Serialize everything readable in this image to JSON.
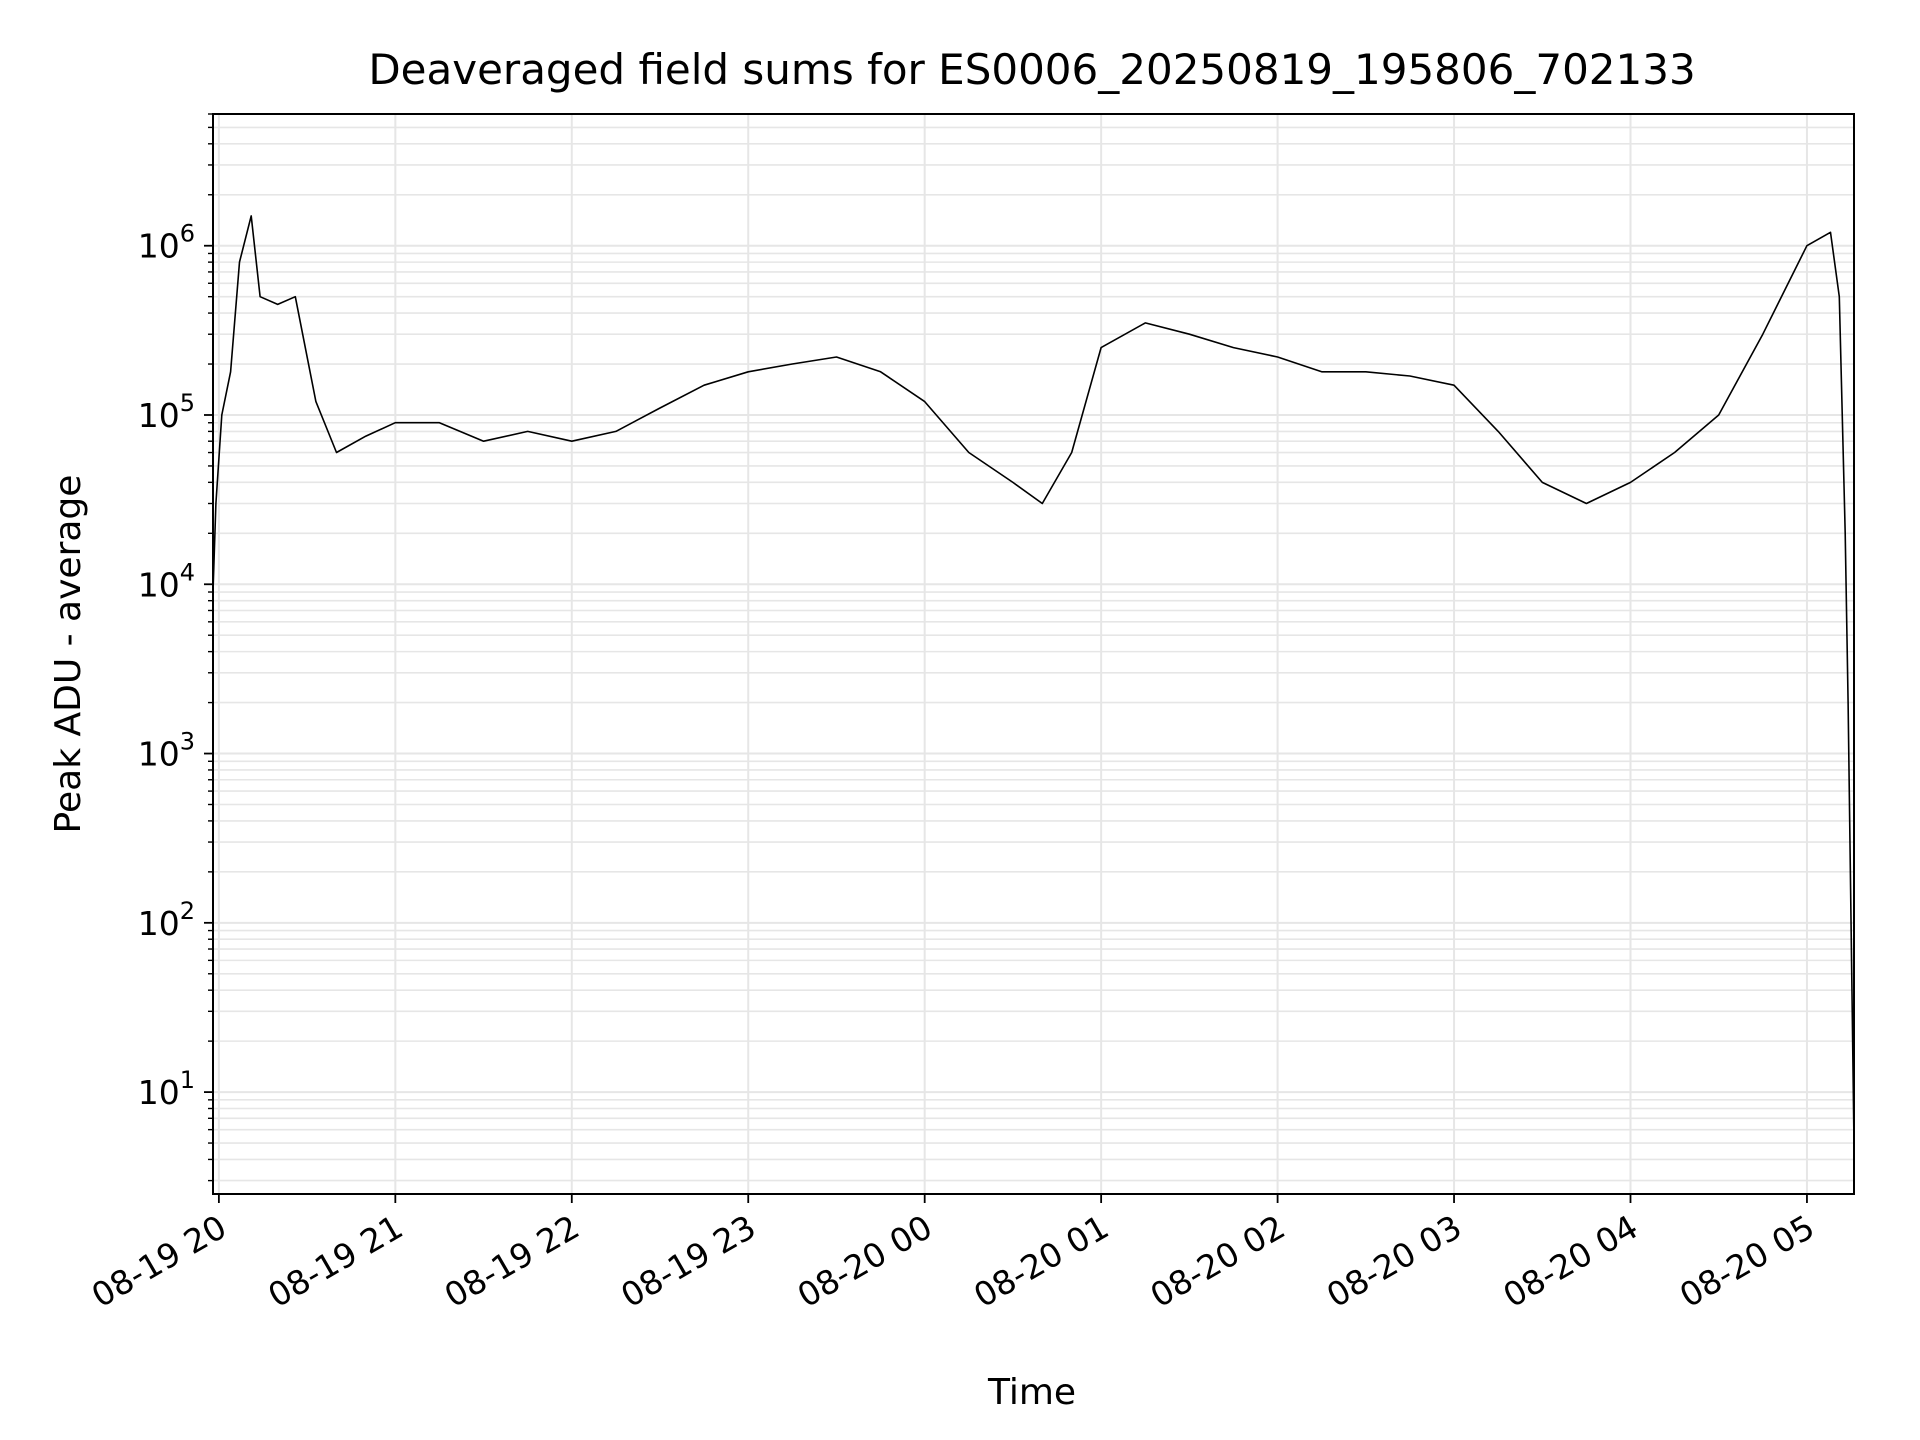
{
  "chart_data": {
    "type": "line",
    "title": "Deaveraged field sums for ES0006_20250819_195806_702133",
    "xlabel": "Time",
    "ylabel": "Peak ADU - average",
    "yscale": "log",
    "ylim": [
      2.5,
      6000000
    ],
    "xlim": [
      "2025-08-19 19:58",
      "2025-08-20 05:16"
    ],
    "grid": true,
    "line_color": "#000000",
    "grid_color": "#e6e6e6",
    "x_ticks": [
      {
        "t": "2025-08-19 20:00",
        "label": "08-19 20"
      },
      {
        "t": "2025-08-19 21:00",
        "label": "08-19 21"
      },
      {
        "t": "2025-08-19 22:00",
        "label": "08-19 22"
      },
      {
        "t": "2025-08-19 23:00",
        "label": "08-19 23"
      },
      {
        "t": "2025-08-20 00:00",
        "label": "08-20 00"
      },
      {
        "t": "2025-08-20 01:00",
        "label": "08-20 01"
      },
      {
        "t": "2025-08-20 02:00",
        "label": "08-20 02"
      },
      {
        "t": "2025-08-20 03:00",
        "label": "08-20 03"
      },
      {
        "t": "2025-08-20 04:00",
        "label": "08-20 04"
      },
      {
        "t": "2025-08-20 05:00",
        "label": "08-20 05"
      }
    ],
    "y_ticks": [
      {
        "value": 10,
        "base": "10",
        "exp": "1"
      },
      {
        "value": 100,
        "base": "10",
        "exp": "2"
      },
      {
        "value": 1000,
        "base": "10",
        "exp": "3"
      },
      {
        "value": 10000,
        "base": "10",
        "exp": "4"
      },
      {
        "value": 100000,
        "base": "10",
        "exp": "5"
      },
      {
        "value": 1000000,
        "base": "10",
        "exp": "6"
      }
    ],
    "series": [
      {
        "points": [
          [
            "2025-08-19 19:58",
            9000
          ],
          [
            "2025-08-19 19:59",
            30000
          ],
          [
            "2025-08-19 20:01",
            100000
          ],
          [
            "2025-08-19 20:04",
            180000
          ],
          [
            "2025-08-19 20:07",
            800000
          ],
          [
            "2025-08-19 20:11",
            1500000
          ],
          [
            "2025-08-19 20:14",
            500000
          ],
          [
            "2025-08-19 20:20",
            450000
          ],
          [
            "2025-08-19 20:26",
            500000
          ],
          [
            "2025-08-19 20:33",
            120000
          ],
          [
            "2025-08-19 20:40",
            60000
          ],
          [
            "2025-08-19 20:50",
            75000
          ],
          [
            "2025-08-19 21:00",
            90000
          ],
          [
            "2025-08-19 21:15",
            90000
          ],
          [
            "2025-08-19 21:30",
            70000
          ],
          [
            "2025-08-19 21:45",
            80000
          ],
          [
            "2025-08-19 22:00",
            70000
          ],
          [
            "2025-08-19 22:15",
            80000
          ],
          [
            "2025-08-19 22:30",
            110000
          ],
          [
            "2025-08-19 22:45",
            150000
          ],
          [
            "2025-08-19 23:00",
            180000
          ],
          [
            "2025-08-19 23:15",
            200000
          ],
          [
            "2025-08-19 23:30",
            220000
          ],
          [
            "2025-08-19 23:45",
            180000
          ],
          [
            "2025-08-20 00:00",
            120000
          ],
          [
            "2025-08-20 00:15",
            60000
          ],
          [
            "2025-08-20 00:30",
            40000
          ],
          [
            "2025-08-20 00:40",
            30000
          ],
          [
            "2025-08-20 00:50",
            60000
          ],
          [
            "2025-08-20 01:00",
            250000
          ],
          [
            "2025-08-20 01:15",
            350000
          ],
          [
            "2025-08-20 01:30",
            300000
          ],
          [
            "2025-08-20 01:45",
            250000
          ],
          [
            "2025-08-20 02:00",
            220000
          ],
          [
            "2025-08-20 02:15",
            180000
          ],
          [
            "2025-08-20 02:30",
            180000
          ],
          [
            "2025-08-20 02:45",
            170000
          ],
          [
            "2025-08-20 03:00",
            150000
          ],
          [
            "2025-08-20 03:15",
            80000
          ],
          [
            "2025-08-20 03:30",
            40000
          ],
          [
            "2025-08-20 03:45",
            30000
          ],
          [
            "2025-08-20 04:00",
            40000
          ],
          [
            "2025-08-20 04:15",
            60000
          ],
          [
            "2025-08-20 04:30",
            100000
          ],
          [
            "2025-08-20 04:45",
            300000
          ],
          [
            "2025-08-20 05:00",
            1000000
          ],
          [
            "2025-08-20 05:08",
            1200000
          ],
          [
            "2025-08-20 05:11",
            500000
          ],
          [
            "2025-08-20 05:13",
            20000
          ],
          [
            "2025-08-20 05:14",
            2000
          ],
          [
            "2025-08-20 05:16",
            5
          ]
        ]
      }
    ]
  }
}
